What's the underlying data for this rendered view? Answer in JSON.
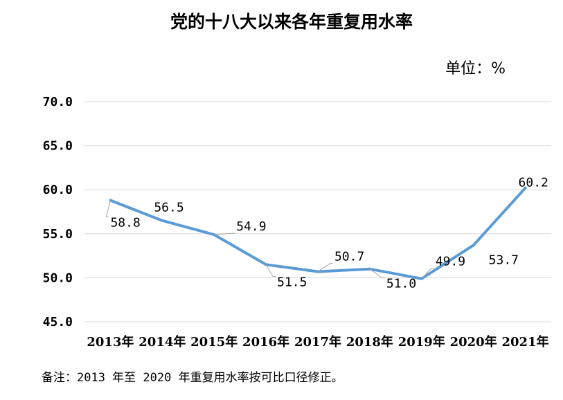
{
  "chart_data": {
    "type": "line",
    "title": "党的十八大以来各年重复用水率",
    "unit": "单位：%",
    "categories": [
      "2013年",
      "2014年",
      "2015年",
      "2016年",
      "2017年",
      "2018年",
      "2019年",
      "2020年",
      "2021年"
    ],
    "values": [
      58.8,
      56.5,
      54.9,
      51.5,
      50.7,
      51.0,
      49.9,
      53.7,
      60.2
    ],
    "data_labels": [
      "58.8",
      "56.5",
      "54.9",
      "51.5",
      "50.7",
      "51.0",
      "49.9",
      "53.7",
      "60.2"
    ],
    "ylim": [
      45.0,
      70.0
    ],
    "yticks": [
      "45.0",
      "50.0",
      "55.0",
      "60.0",
      "65.0",
      "70.0"
    ],
    "grid": true,
    "legend": "none",
    "line_color": "#5b9bd5",
    "note": "备注：2013 年至 2020 年重复用水率按可比口径修正。"
  }
}
